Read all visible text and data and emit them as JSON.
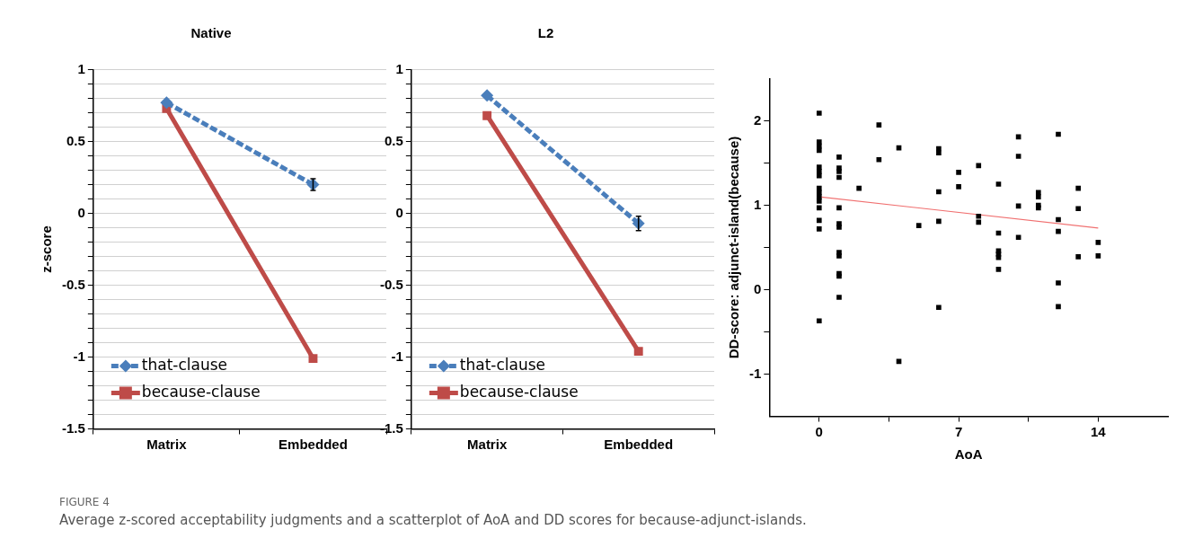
{
  "chart_data": [
    {
      "type": "line",
      "title": "Native",
      "ylabel": "z-score",
      "categories": [
        "Matrix",
        "Embedded"
      ],
      "series": [
        {
          "name": "that-clause",
          "color": "#4a7ebb",
          "values": [
            0.77,
            0.2
          ],
          "errors": [
            null,
            0.04
          ],
          "marker": "diamond",
          "line_style": "dashed"
        },
        {
          "name": "because-clause",
          "color": "#be4b48",
          "values": [
            0.73,
            -1.01
          ],
          "marker": "square",
          "line_style": "solid"
        }
      ],
      "ylim": [
        -1.5,
        1
      ],
      "yticks": [
        -1.5,
        {
          "value": -1.4,
          "label": null
        },
        {
          "value": -1.3,
          "label": null
        },
        {
          "value": -1.2,
          "label": null
        },
        {
          "value": -1.1,
          "label": null
        },
        -1,
        {
          "value": -0.9,
          "label": null
        },
        {
          "value": -0.8,
          "label": null
        },
        {
          "value": -0.7,
          "label": null
        },
        {
          "value": -0.6,
          "label": null
        },
        -0.5,
        {
          "value": -0.4,
          "label": null
        },
        {
          "value": -0.3,
          "label": null
        },
        {
          "value": -0.2,
          "label": null
        },
        {
          "value": -0.1,
          "label": null
        },
        0,
        {
          "value": 0.1,
          "label": null
        },
        {
          "value": 0.2,
          "label": null
        },
        {
          "value": 0.3,
          "label": null
        },
        {
          "value": 0.4,
          "label": null
        },
        0.5,
        {
          "value": 0.6,
          "label": null
        },
        {
          "value": 0.7,
          "label": null
        },
        {
          "value": 0.8,
          "label": null
        },
        {
          "value": 0.9,
          "label": null
        },
        1
      ],
      "grid": "y",
      "legend": "bottom left"
    },
    {
      "type": "line",
      "title": "L2",
      "categories": [
        "Matrix",
        "Embedded"
      ],
      "series": [
        {
          "name": "that-clause",
          "color": "#4a7ebb",
          "values": [
            0.82,
            -0.07
          ],
          "errors": [
            null,
            0.05
          ],
          "marker": "diamond",
          "line_style": "dashed"
        },
        {
          "name": "because-clause",
          "color": "#be4b48",
          "values": [
            0.68,
            -0.96
          ],
          "marker": "square",
          "line_style": "solid"
        }
      ],
      "ylim": [
        -1.5,
        1
      ],
      "yticks": [
        -1.5,
        {
          "value": -1.4,
          "label": null
        },
        {
          "value": -1.3,
          "label": null
        },
        {
          "value": -1.2,
          "label": null
        },
        {
          "value": -1.1,
          "label": null
        },
        -1,
        {
          "value": -0.9,
          "label": null
        },
        {
          "value": -0.8,
          "label": null
        },
        {
          "value": -0.7,
          "label": null
        },
        {
          "value": -0.6,
          "label": null
        },
        -0.5,
        {
          "value": -0.4,
          "label": null
        },
        {
          "value": -0.3,
          "label": null
        },
        {
          "value": -0.2,
          "label": null
        },
        {
          "value": -0.1,
          "label": null
        },
        0,
        {
          "value": 0.1,
          "label": null
        },
        {
          "value": 0.2,
          "label": null
        },
        {
          "value": 0.3,
          "label": null
        },
        {
          "value": 0.4,
          "label": null
        },
        0.5,
        {
          "value": 0.6,
          "label": null
        },
        {
          "value": 0.7,
          "label": null
        },
        {
          "value": 0.8,
          "label": null
        },
        {
          "value": 0.9,
          "label": null
        },
        1
      ],
      "grid": "y",
      "legend": "bottom left"
    },
    {
      "type": "scatter",
      "xlabel": "AoA",
      "ylabel": "DD-score: adjunct-island(because)",
      "series": [
        {
          "color": "#000000",
          "marker": "square",
          "x": [
            0,
            0,
            0,
            0,
            0,
            0,
            0,
            0,
            0,
            0,
            0,
            0,
            0,
            0,
            0,
            1,
            1,
            1,
            1,
            1,
            1,
            1,
            1,
            1,
            1,
            1,
            1,
            2,
            3,
            3,
            4,
            4,
            5,
            6,
            6,
            6,
            6,
            6,
            7,
            7,
            8,
            8,
            8,
            9,
            9,
            9,
            9,
            9,
            9,
            10,
            10,
            10,
            10,
            11,
            11,
            11,
            11,
            12,
            12,
            12,
            12,
            12,
            13,
            13,
            13,
            14,
            14
          ],
          "values": [
            2.09,
            1.75,
            1.7,
            1.65,
            1.45,
            1.4,
            1.35,
            1.2,
            1.15,
            1.1,
            1.05,
            0.97,
            0.82,
            0.72,
            -0.37,
            1.57,
            1.44,
            1.4,
            1.33,
            0.97,
            0.78,
            0.74,
            0.44,
            0.4,
            0.19,
            0.16,
            -0.09,
            1.2,
            1.95,
            1.54,
            1.68,
            -0.85,
            0.76,
            1.67,
            1.62,
            1.16,
            0.81,
            -0.21,
            1.39,
            1.22,
            1.47,
            0.87,
            0.8,
            1.25,
            0.67,
            0.46,
            0.42,
            0.38,
            0.24,
            1.81,
            1.58,
            0.99,
            0.62,
            1.15,
            1.1,
            1.0,
            0.97,
            1.84,
            0.83,
            0.69,
            0.08,
            -0.2,
            1.2,
            0.96,
            0.39,
            0.56,
            0.4
          ]
        },
        {
          "type": "line",
          "color": "#f07070",
          "marker": "none",
          "line_style": "solid",
          "x": [
            0,
            14
          ],
          "values": [
            1.1,
            0.73
          ]
        }
      ],
      "xlim": [
        -2.5,
        17.5
      ],
      "xticks": [
        0,
        {
          "value": 3.5,
          "label": null
        },
        7,
        {
          "value": 10.5,
          "label": null
        },
        14
      ],
      "ylim": [
        -1.5,
        2.5
      ],
      "yticks": [
        -1,
        {
          "value": -0.5,
          "label": null
        },
        0,
        {
          "value": 0.5,
          "label": null
        },
        1,
        {
          "value": 1.5,
          "label": null
        },
        2
      ],
      "grid": false,
      "legend": false,
      "annotations": [
        "FIGURE 4",
        "Average z-scored acceptability judgments and a scatterplot of AoA and DD scores for because-adjunct-islands."
      ]
    }
  ]
}
